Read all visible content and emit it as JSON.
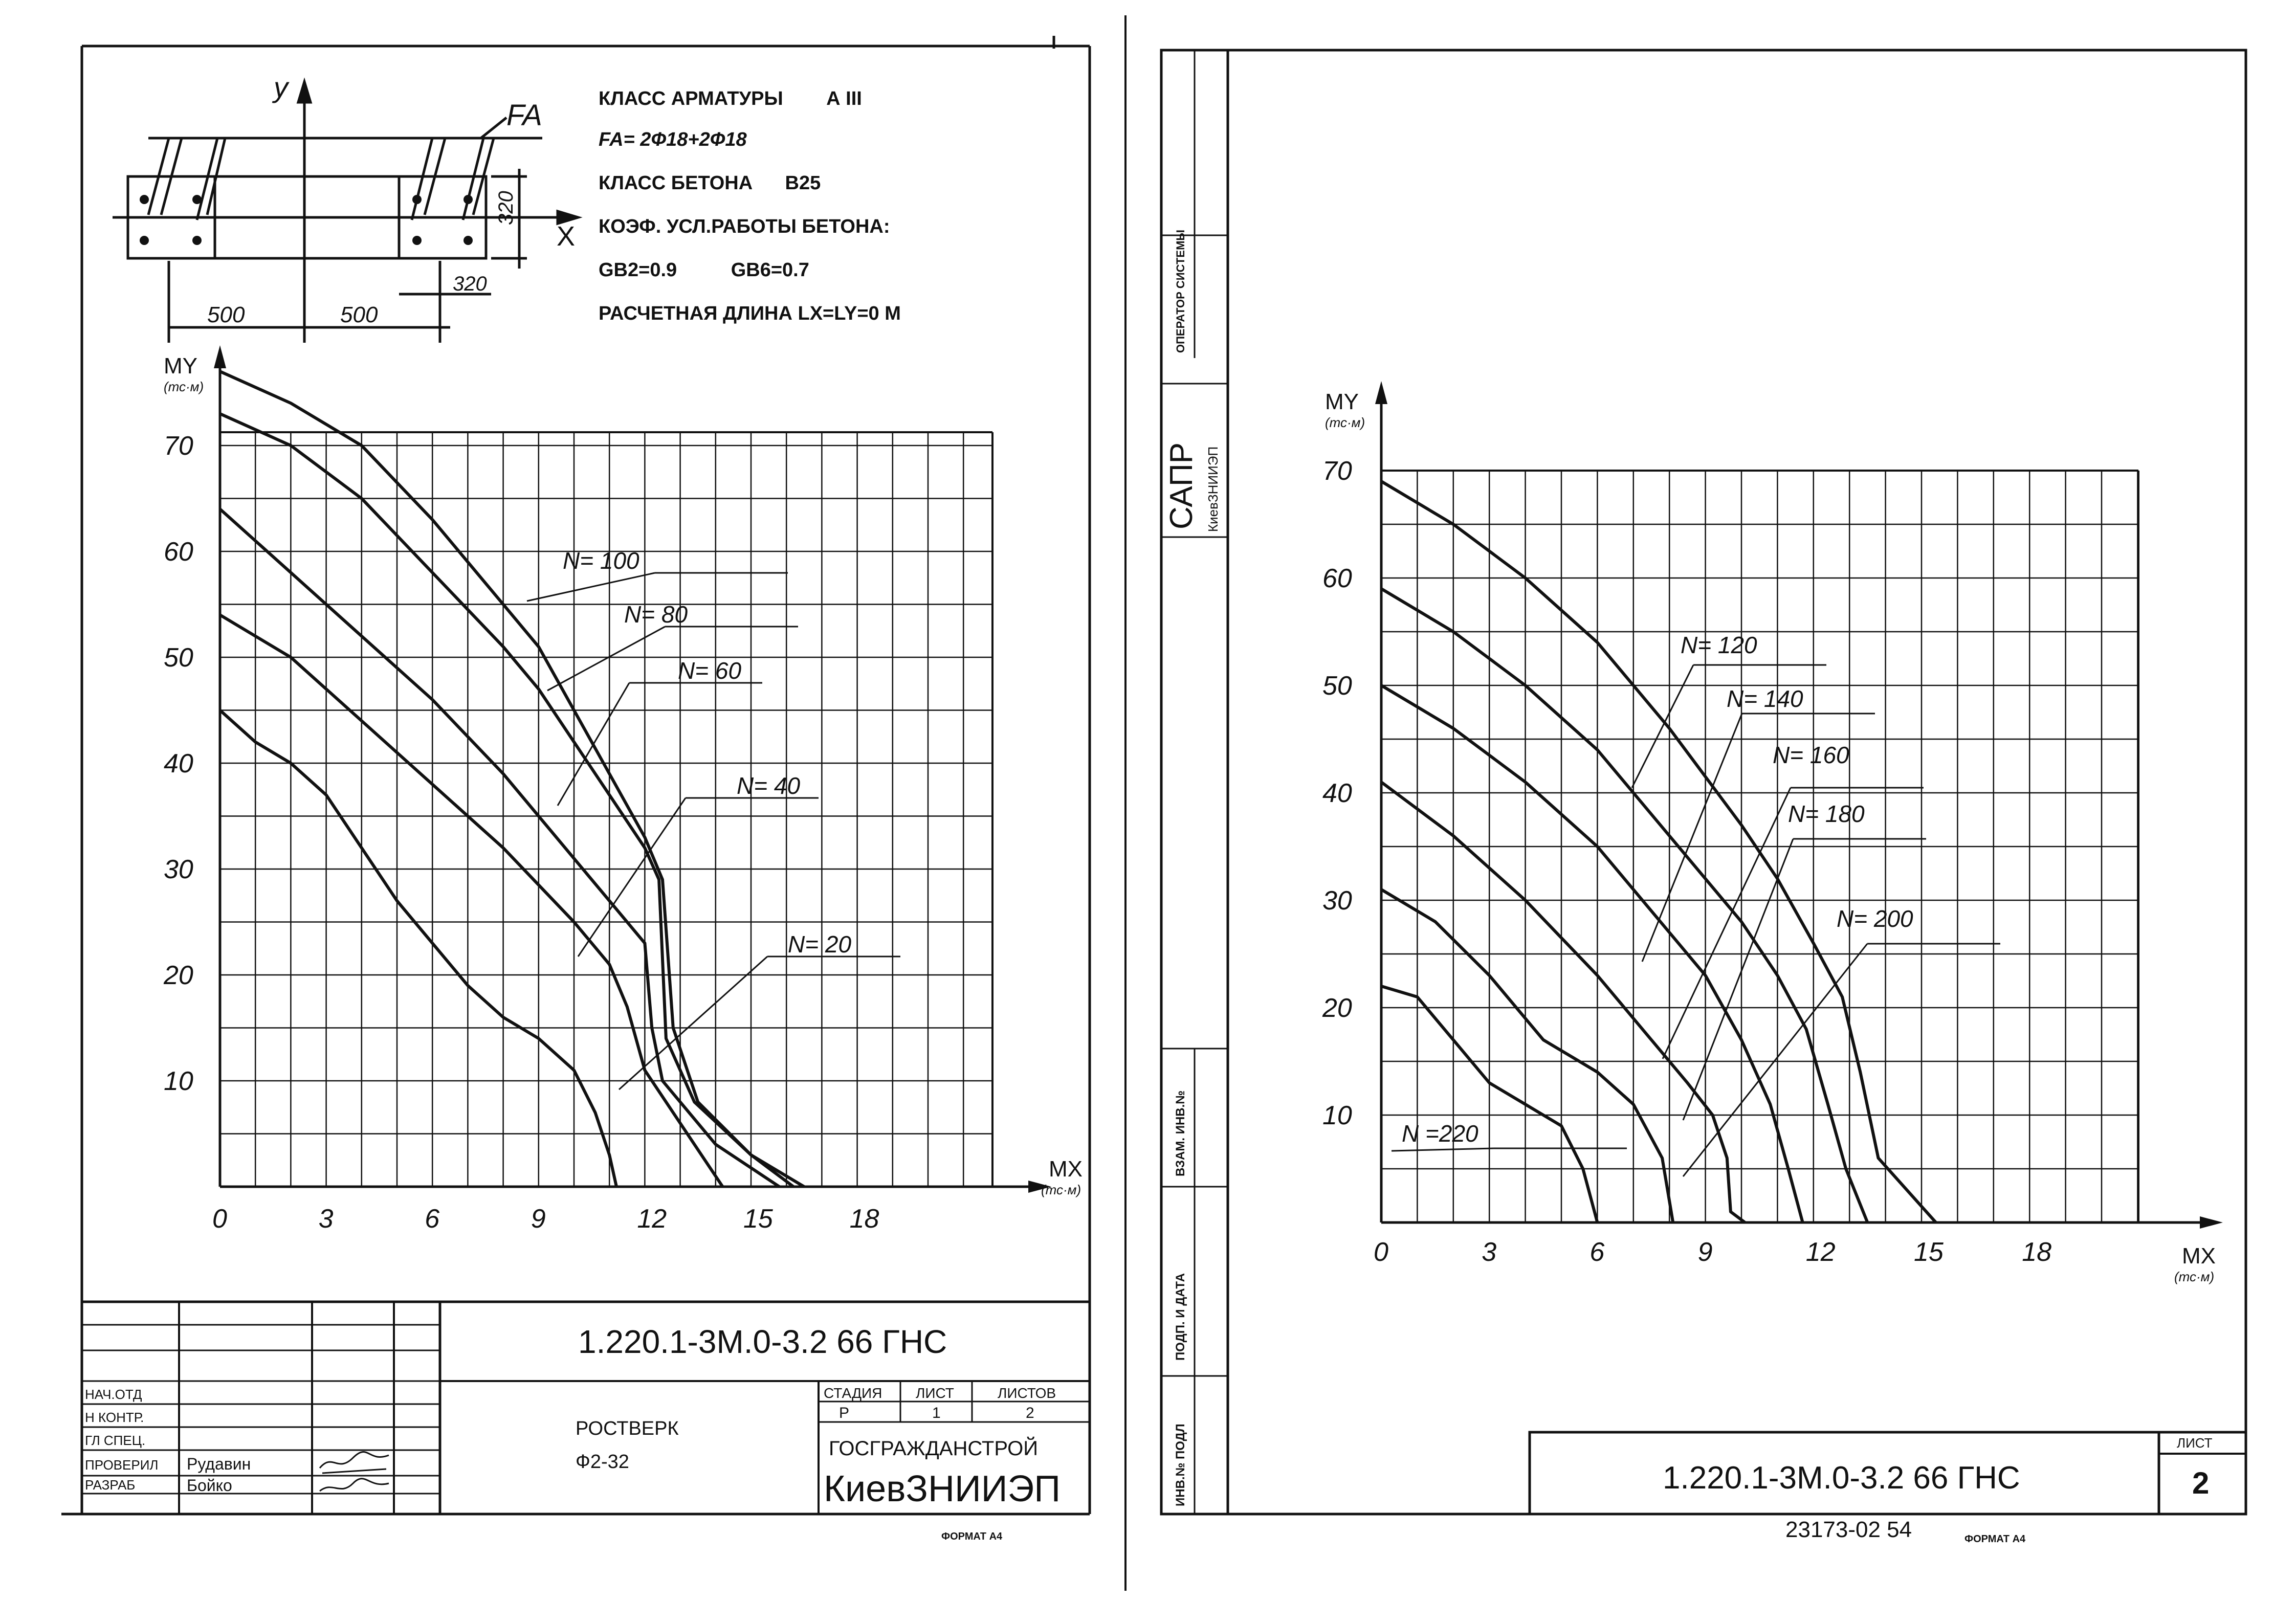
{
  "chart_data": [
    {
      "type": "line",
      "xlabel": "MX",
      "xunit": "(тс·м)",
      "ylabel": "MY",
      "yunit": "(тс·м)",
      "xlim": [
        0,
        21
      ],
      "ylim": [
        0,
        70
      ],
      "xticks": [
        "0",
        "3",
        "6",
        "9",
        "12",
        "15",
        "18"
      ],
      "yticks": [
        "10",
        "20",
        "30",
        "40",
        "50",
        "60",
        "70"
      ],
      "grid": true,
      "series": [
        {
          "name": "N= 100",
          "x": [
            0,
            2,
            4,
            6,
            8,
            9,
            10,
            11,
            12,
            12.5,
            12.8,
            13.5,
            15,
            16.5
          ],
          "y": [
            77,
            74,
            70,
            63,
            55,
            51,
            45,
            39,
            33,
            29,
            15,
            8,
            3,
            0
          ]
        },
        {
          "name": "N= 80",
          "x": [
            0,
            2,
            4,
            6,
            8,
            9,
            10,
            11,
            12,
            12.4,
            12.6,
            13.4,
            15,
            16.2
          ],
          "y": [
            73,
            70,
            65,
            58,
            51,
            47,
            42,
            37,
            32,
            29,
            14,
            8,
            3,
            0
          ]
        },
        {
          "name": "N= 60",
          "x": [
            0,
            2,
            4,
            6,
            8,
            10,
            11,
            12,
            12.2,
            12.5,
            14,
            15.8
          ],
          "y": [
            64,
            58,
            52,
            46,
            39,
            31,
            27,
            23,
            15,
            10,
            4,
            0
          ]
        },
        {
          "name": "N= 40",
          "x": [
            0,
            2,
            4,
            6,
            8,
            10,
            11,
            11.5,
            12,
            14.2
          ],
          "y": [
            54,
            50,
            44,
            38,
            32,
            25,
            21,
            17,
            11,
            0
          ]
        },
        {
          "name": "N= 20",
          "x": [
            0,
            1,
            2,
            3,
            4,
            5,
            6,
            7,
            8,
            9,
            10,
            10.6,
            11,
            11.2
          ],
          "y": [
            45,
            42,
            40,
            37,
            32,
            27,
            23,
            19,
            16,
            14,
            11,
            7,
            3,
            0
          ]
        }
      ]
    },
    {
      "type": "line",
      "xlabel": "MX",
      "xunit": "(тс·м)",
      "ylabel": "MY",
      "yunit": "(тс·м)",
      "xlim": [
        0,
        21
      ],
      "ylim": [
        0,
        70
      ],
      "xticks": [
        "0",
        "3",
        "6",
        "9",
        "12",
        "15",
        "18"
      ],
      "yticks": [
        "10",
        "20",
        "30",
        "40",
        "50",
        "60",
        "70"
      ],
      "grid": true,
      "series": [
        {
          "name": "N= 120",
          "x": [
            0,
            2,
            4,
            6,
            8,
            10,
            11,
            12,
            12.8,
            13.3,
            13.8,
            15.4
          ],
          "y": [
            69,
            65,
            60,
            54,
            46,
            37,
            32,
            26,
            21,
            14,
            6,
            0
          ]
        },
        {
          "name": "N= 140",
          "x": [
            0,
            2,
            4,
            6,
            8,
            10,
            11,
            11.8,
            12.4,
            12.9,
            13.5
          ],
          "y": [
            59,
            55,
            50,
            44,
            36,
            28,
            23,
            18,
            11,
            5,
            0
          ]
        },
        {
          "name": "N= 160",
          "x": [
            0,
            2,
            4,
            6,
            8,
            9,
            10,
            10.8,
            11.3,
            11.7
          ],
          "y": [
            50,
            46,
            41,
            35,
            27,
            23,
            17,
            11,
            5,
            0
          ]
        },
        {
          "name": "N= 180",
          "x": [
            0,
            2,
            4,
            6,
            7.5,
            8.5,
            9.2,
            9.6,
            9.7,
            10.1
          ],
          "y": [
            41,
            36,
            30,
            23,
            17,
            13,
            10,
            6,
            1,
            0
          ]
        },
        {
          "name": "N= 200",
          "x": [
            0,
            1.5,
            3,
            4.5,
            6,
            7,
            7.8,
            8,
            8.1
          ],
          "y": [
            31,
            28,
            23,
            17,
            14,
            11,
            6,
            2,
            0
          ]
        },
        {
          "name": "N =220",
          "x": [
            0,
            1,
            2,
            3,
            4,
            5,
            5.6,
            6
          ],
          "y": [
            22,
            21,
            17,
            13,
            11,
            9,
            5,
            0
          ]
        }
      ]
    }
  ],
  "left_sheet": {
    "section": {
      "axis_y": "y",
      "axis_x": "X",
      "fa_label": "FA",
      "dim_320_v": "320",
      "dim_320_h": "320",
      "dim_500_l": "500",
      "dim_500_r": "500"
    },
    "specs": [
      "КЛАСС АРМАТУРЫ        А III",
      "FA= 2Ф18+2Ф18",
      "КЛАСС БЕТОНА      В25",
      "КОЭФ. УСЛ.РАБОТЫ БЕТОНА:",
      "GB2=0.9          GB6=0.7",
      "РАСЧЕТНАЯ ДЛИНА LX=LY=0 M"
    ],
    "title_block": {
      "code": "1.220.1-3М.0-3.2 66 ГНС",
      "roles": [
        "НАЧ.ОТД",
        "Н КОНТР.",
        "ГЛ СПЕЦ.",
        "ПРОВЕРИЛ",
        "РАЗРАБ"
      ],
      "names": [
        "Рудавин",
        "Бойко"
      ],
      "object": "РОСТВЕРК",
      "object_mark": "Ф2-32",
      "stage_header": "СТАДИЯ",
      "sheet_header": "ЛИСТ",
      "sheets_header": "ЛИСТОВ",
      "stage": "Р",
      "sheet": "1",
      "sheets": "2",
      "org1": "ГОСГРАЖДАНСТРОЙ",
      "org2": "КиевЗНИИЭП"
    },
    "format": "ФОРМАТ А4"
  },
  "right_sheet": {
    "side_labels": [
      "ОПЕРАТОР СИСТЕМЫ",
      "САПР",
      "КиевЗНИИЭП",
      "ВЗАМ. ИНВ.№",
      "ПОДП. И ДАТА",
      "ИНВ.№ ПОДЛ"
    ],
    "title_code": "1.220.1-3М.0-3.2 66 ГНС",
    "sheet_header": "ЛИСТ",
    "sheet_no": "2",
    "stamp": "23173-02 54",
    "format": "ФОРМАТ А4"
  }
}
